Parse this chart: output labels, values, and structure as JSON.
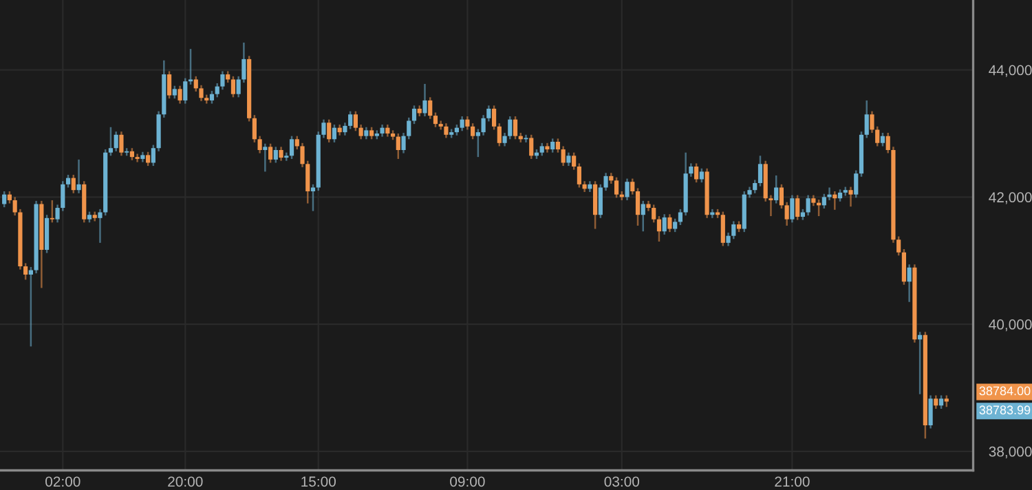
{
  "chart_data": {
    "type": "candlestick",
    "categories": [
      null,
      null,
      null,
      null,
      null,
      null,
      null,
      null,
      null,
      null,
      null,
      "02:00",
      null,
      null,
      null,
      null,
      null,
      null,
      null,
      null,
      null,
      null,
      null,
      null,
      null,
      null,
      null,
      null,
      null,
      null,
      null,
      null,
      null,
      null,
      "20:00",
      null,
      null,
      null,
      null,
      null,
      null,
      null,
      null,
      null,
      null,
      null,
      null,
      null,
      null,
      null,
      null,
      null,
      null,
      null,
      null,
      null,
      null,
      null,
      null,
      "15:00",
      null,
      null,
      null,
      null,
      null,
      null,
      null,
      null,
      null,
      null,
      null,
      null,
      null,
      null,
      null,
      null,
      null,
      null,
      null,
      null,
      null,
      null,
      null,
      null,
      null,
      null,
      null,
      "09:00",
      null,
      null,
      null,
      null,
      null,
      null,
      null,
      null,
      null,
      null,
      null,
      null,
      null,
      null,
      null,
      null,
      null,
      null,
      null,
      null,
      null,
      null,
      null,
      null,
      null,
      null,
      null,
      null,
      "03:00",
      null,
      null,
      null,
      null,
      null,
      null,
      null,
      null,
      null,
      null,
      null,
      null,
      null,
      null,
      null,
      null,
      null,
      null,
      null,
      null,
      null,
      null,
      null,
      null,
      null,
      null,
      null,
      null,
      null,
      null,
      null,
      "21:00",
      null,
      null,
      null,
      null,
      null,
      null,
      null,
      null,
      null,
      null,
      null,
      null,
      null,
      null,
      null,
      null,
      null,
      null,
      null,
      null,
      null,
      null,
      null,
      null,
      null,
      null,
      null,
      null,
      null
    ],
    "ohlc": [
      [
        41890,
        42090,
        41840,
        42040
      ],
      [
        42040,
        42090,
        41900,
        41950
      ],
      [
        41950,
        42000,
        41710,
        41760
      ],
      [
        41760,
        41810,
        40860,
        40910
      ],
      [
        40910,
        40960,
        40700,
        40780
      ],
      [
        40780,
        40900,
        39650,
        40850
      ],
      [
        40850,
        41940,
        40800,
        41890
      ],
      [
        41890,
        41940,
        40570,
        41170
      ],
      [
        41170,
        41720,
        41120,
        41670
      ],
      [
        41670,
        41950,
        41600,
        41650
      ],
      [
        41650,
        41880,
        41600,
        41830
      ],
      [
        41830,
        42250,
        41780,
        42200
      ],
      [
        42200,
        42350,
        42150,
        42300
      ],
      [
        42300,
        42350,
        42060,
        42110
      ],
      [
        42110,
        42590,
        42060,
        42200
      ],
      [
        42200,
        42250,
        41600,
        41650
      ],
      [
        41650,
        41770,
        41600,
        41720
      ],
      [
        41720,
        41770,
        41620,
        41670
      ],
      [
        41670,
        41810,
        41280,
        41760
      ],
      [
        41760,
        42750,
        41710,
        42700
      ],
      [
        42700,
        43100,
        42650,
        42770
      ],
      [
        42770,
        43030,
        42720,
        42980
      ],
      [
        42980,
        43030,
        42650,
        42700
      ],
      [
        42700,
        42770,
        42650,
        42720
      ],
      [
        42720,
        42770,
        42580,
        42630
      ],
      [
        42630,
        42680,
        42550,
        42600
      ],
      [
        42600,
        42710,
        42550,
        42660
      ],
      [
        42660,
        42710,
        42490,
        42540
      ],
      [
        42540,
        42820,
        42490,
        42770
      ],
      [
        42770,
        43350,
        42720,
        43300
      ],
      [
        43300,
        44150,
        43250,
        43930
      ],
      [
        43930,
        43980,
        43550,
        43600
      ],
      [
        43600,
        43750,
        43550,
        43700
      ],
      [
        43700,
        43750,
        43470,
        43520
      ],
      [
        43520,
        43870,
        43470,
        43820
      ],
      [
        43820,
        44330,
        43770,
        43850
      ],
      [
        43850,
        43900,
        43660,
        43710
      ],
      [
        43710,
        43760,
        43510,
        43560
      ],
      [
        43560,
        43610,
        43470,
        43520
      ],
      [
        43520,
        43670,
        43470,
        43620
      ],
      [
        43620,
        43790,
        43570,
        43740
      ],
      [
        43740,
        43980,
        43690,
        43930
      ],
      [
        43930,
        43980,
        43800,
        43850
      ],
      [
        43850,
        43900,
        43570,
        43620
      ],
      [
        43620,
        43900,
        43570,
        43850
      ],
      [
        43850,
        44430,
        43800,
        44170
      ],
      [
        44170,
        44220,
        43190,
        43240
      ],
      [
        43240,
        43290,
        42860,
        42910
      ],
      [
        42910,
        42960,
        42690,
        42740
      ],
      [
        42740,
        42840,
        42400,
        42790
      ],
      [
        42790,
        42840,
        42540,
        42590
      ],
      [
        42590,
        42790,
        42540,
        42740
      ],
      [
        42740,
        42790,
        42570,
        42620
      ],
      [
        42620,
        42700,
        42570,
        42650
      ],
      [
        42650,
        42960,
        42600,
        42910
      ],
      [
        42910,
        42960,
        42750,
        42800
      ],
      [
        42800,
        42850,
        42470,
        42520
      ],
      [
        42520,
        42570,
        41900,
        42090
      ],
      [
        42090,
        42200,
        41780,
        42150
      ],
      [
        42150,
        43030,
        42100,
        42980
      ],
      [
        42980,
        43220,
        42930,
        43170
      ],
      [
        43170,
        43220,
        42860,
        42910
      ],
      [
        42910,
        43140,
        42860,
        43090
      ],
      [
        43090,
        43140,
        42970,
        43020
      ],
      [
        43020,
        43170,
        42970,
        43120
      ],
      [
        43120,
        43350,
        43070,
        43300
      ],
      [
        43300,
        43350,
        43040,
        43090
      ],
      [
        43090,
        43140,
        42910,
        42960
      ],
      [
        42960,
        43100,
        42910,
        43050
      ],
      [
        43050,
        43100,
        42910,
        42960
      ],
      [
        42960,
        43050,
        42910,
        43000
      ],
      [
        43000,
        43140,
        42950,
        43090
      ],
      [
        43090,
        43140,
        42950,
        43000
      ],
      [
        43000,
        43050,
        42900,
        42950
      ],
      [
        42950,
        43000,
        42600,
        42740
      ],
      [
        42740,
        43010,
        42690,
        42960
      ],
      [
        42960,
        43250,
        42910,
        43200
      ],
      [
        43200,
        43440,
        43150,
        43390
      ],
      [
        43390,
        43440,
        43270,
        43320
      ],
      [
        43320,
        43780,
        43270,
        43520
      ],
      [
        43520,
        43570,
        43230,
        43280
      ],
      [
        43280,
        43330,
        43100,
        43150
      ],
      [
        43150,
        43200,
        43060,
        43110
      ],
      [
        43110,
        43160,
        42930,
        42980
      ],
      [
        42980,
        43070,
        42930,
        43020
      ],
      [
        43020,
        43140,
        42970,
        43090
      ],
      [
        43090,
        43270,
        43040,
        43220
      ],
      [
        43220,
        43270,
        43060,
        43110
      ],
      [
        43110,
        43160,
        42910,
        42960
      ],
      [
        42960,
        43070,
        42630,
        43020
      ],
      [
        43020,
        43290,
        42970,
        43240
      ],
      [
        43240,
        43440,
        43190,
        43390
      ],
      [
        43390,
        43440,
        43060,
        43110
      ],
      [
        43110,
        43160,
        42800,
        42850
      ],
      [
        42850,
        43010,
        42800,
        42960
      ],
      [
        42960,
        43270,
        42910,
        43220
      ],
      [
        43220,
        43270,
        42910,
        42960
      ],
      [
        42960,
        43010,
        42860,
        42910
      ],
      [
        42910,
        42980,
        42860,
        42930
      ],
      [
        42930,
        42980,
        42600,
        42650
      ],
      [
        42650,
        42750,
        42600,
        42700
      ],
      [
        42700,
        42850,
        42650,
        42800
      ],
      [
        42800,
        42850,
        42700,
        42750
      ],
      [
        42750,
        42920,
        42700,
        42870
      ],
      [
        42870,
        42920,
        42700,
        42750
      ],
      [
        42750,
        42800,
        42490,
        42540
      ],
      [
        42540,
        42700,
        42490,
        42650
      ],
      [
        42650,
        42700,
        42430,
        42480
      ],
      [
        42480,
        42530,
        42150,
        42200
      ],
      [
        42200,
        42250,
        42080,
        42130
      ],
      [
        42130,
        42250,
        42080,
        42200
      ],
      [
        42200,
        42250,
        41500,
        41720
      ],
      [
        41720,
        42200,
        41670,
        42150
      ],
      [
        42150,
        42380,
        42100,
        42330
      ],
      [
        42330,
        42380,
        42210,
        42260
      ],
      [
        42260,
        42310,
        41990,
        42040
      ],
      [
        42040,
        42090,
        41950,
        42000
      ],
      [
        42000,
        42290,
        41950,
        42240
      ],
      [
        42240,
        42290,
        42040,
        42090
      ],
      [
        42090,
        42140,
        41550,
        41720
      ],
      [
        41720,
        41940,
        41460,
        41890
      ],
      [
        41890,
        41940,
        41780,
        41830
      ],
      [
        41830,
        41880,
        41600,
        41650
      ],
      [
        41650,
        41700,
        41300,
        41460
      ],
      [
        41460,
        41730,
        41410,
        41680
      ],
      [
        41680,
        41730,
        41450,
        41500
      ],
      [
        41500,
        41660,
        41450,
        41610
      ],
      [
        41610,
        41810,
        41560,
        41760
      ],
      [
        41760,
        42700,
        41710,
        42370
      ],
      [
        42370,
        42530,
        42320,
        42480
      ],
      [
        42480,
        42530,
        42230,
        42280
      ],
      [
        42280,
        42450,
        42230,
        42400
      ],
      [
        42400,
        42450,
        41670,
        41720
      ],
      [
        41720,
        41810,
        41670,
        41760
      ],
      [
        41760,
        41810,
        41670,
        41720
      ],
      [
        41720,
        41770,
        41230,
        41280
      ],
      [
        41280,
        41440,
        41230,
        41390
      ],
      [
        41390,
        41620,
        41340,
        41570
      ],
      [
        41570,
        41620,
        41450,
        41500
      ],
      [
        41500,
        42090,
        41450,
        42040
      ],
      [
        42040,
        42160,
        41990,
        42110
      ],
      [
        42110,
        42270,
        42060,
        42220
      ],
      [
        42220,
        42650,
        42170,
        42520
      ],
      [
        42520,
        42570,
        41930,
        41980
      ],
      [
        41980,
        42030,
        41700,
        41950
      ],
      [
        41950,
        42340,
        41900,
        42150
      ],
      [
        42150,
        42200,
        41820,
        41870
      ],
      [
        41870,
        41920,
        41550,
        41650
      ],
      [
        41650,
        42030,
        41600,
        41980
      ],
      [
        41980,
        42030,
        41640,
        41690
      ],
      [
        41690,
        41810,
        41640,
        41760
      ],
      [
        41760,
        42030,
        41710,
        41980
      ],
      [
        41980,
        42030,
        41860,
        41910
      ],
      [
        41910,
        41960,
        41700,
        41870
      ],
      [
        41870,
        42050,
        41820,
        42000
      ],
      [
        42000,
        42150,
        41950,
        42040
      ],
      [
        42040,
        42090,
        41800,
        41980
      ],
      [
        41980,
        42120,
        41930,
        42070
      ],
      [
        42070,
        42160,
        42020,
        42110
      ],
      [
        42110,
        42160,
        41850,
        42040
      ],
      [
        42040,
        42420,
        41990,
        42370
      ],
      [
        42370,
        43030,
        42320,
        42980
      ],
      [
        42980,
        43520,
        42930,
        43300
      ],
      [
        43300,
        43350,
        43010,
        43060
      ],
      [
        43060,
        43110,
        42800,
        42850
      ],
      [
        42850,
        43010,
        42800,
        42960
      ],
      [
        42960,
        43010,
        42690,
        42740
      ],
      [
        42740,
        42790,
        41280,
        41330
      ],
      [
        41330,
        41380,
        41080,
        41130
      ],
      [
        41130,
        41180,
        40620,
        40670
      ],
      [
        40670,
        40940,
        40350,
        40890
      ],
      [
        40890,
        40940,
        39710,
        39760
      ],
      [
        39760,
        39880,
        38900,
        39830
      ],
      [
        39830,
        39880,
        38200,
        38410
      ],
      [
        38410,
        38880,
        38360,
        38830
      ],
      [
        38830,
        38880,
        38670,
        38720
      ],
      [
        38720,
        38880,
        38670,
        38830
      ],
      [
        38830,
        38880,
        38700,
        38784
      ]
    ],
    "colors": [
      "#6db3d3",
      "#f0944b",
      "#f0944b",
      "#f0944b",
      "#f0944b",
      "#6db3d3",
      "#6db3d3",
      "#f0944b",
      "#6db3d3",
      "#f0944b",
      "#6db3d3",
      "#6db3d3",
      "#6db3d3",
      "#f0944b",
      "#6db3d3",
      "#f0944b",
      "#6db3d3",
      "#f0944b",
      "#6db3d3",
      "#6db3d3",
      "#6db3d3",
      "#6db3d3",
      "#f0944b",
      "#6db3d3",
      "#f0944b",
      "#f0944b",
      "#6db3d3",
      "#f0944b",
      "#6db3d3",
      "#6db3d3",
      "#6db3d3",
      "#f0944b",
      "#6db3d3",
      "#f0944b",
      "#6db3d3",
      "#6db3d3",
      "#f0944b",
      "#f0944b",
      "#f0944b",
      "#6db3d3",
      "#6db3d3",
      "#6db3d3",
      "#f0944b",
      "#f0944b",
      "#6db3d3",
      "#6db3d3",
      "#f0944b",
      "#f0944b",
      "#f0944b",
      "#6db3d3",
      "#f0944b",
      "#6db3d3",
      "#f0944b",
      "#6db3d3",
      "#6db3d3",
      "#f0944b",
      "#f0944b",
      "#f0944b",
      "#6db3d3",
      "#6db3d3",
      "#6db3d3",
      "#f0944b",
      "#6db3d3",
      "#f0944b",
      "#6db3d3",
      "#6db3d3",
      "#f0944b",
      "#f0944b",
      "#6db3d3",
      "#f0944b",
      "#6db3d3",
      "#6db3d3",
      "#f0944b",
      "#f0944b",
      "#f0944b",
      "#6db3d3",
      "#6db3d3",
      "#6db3d3",
      "#f0944b",
      "#6db3d3",
      "#f0944b",
      "#f0944b",
      "#f0944b",
      "#f0944b",
      "#6db3d3",
      "#6db3d3",
      "#6db3d3",
      "#f0944b",
      "#f0944b",
      "#6db3d3",
      "#6db3d3",
      "#6db3d3",
      "#f0944b",
      "#f0944b",
      "#6db3d3",
      "#6db3d3",
      "#f0944b",
      "#f0944b",
      "#6db3d3",
      "#f0944b",
      "#6db3d3",
      "#6db3d3",
      "#f0944b",
      "#6db3d3",
      "#f0944b",
      "#f0944b",
      "#6db3d3",
      "#f0944b",
      "#f0944b",
      "#f0944b",
      "#6db3d3",
      "#f0944b",
      "#6db3d3",
      "#6db3d3",
      "#f0944b",
      "#f0944b",
      "#f0944b",
      "#6db3d3",
      "#f0944b",
      "#f0944b",
      "#6db3d3",
      "#f0944b",
      "#f0944b",
      "#f0944b",
      "#6db3d3",
      "#f0944b",
      "#6db3d3",
      "#6db3d3",
      "#6db3d3",
      "#6db3d3",
      "#f0944b",
      "#6db3d3",
      "#f0944b",
      "#6db3d3",
      "#f0944b",
      "#f0944b",
      "#6db3d3",
      "#6db3d3",
      "#f0944b",
      "#6db3d3",
      "#6db3d3",
      "#6db3d3",
      "#6db3d3",
      "#f0944b",
      "#f0944b",
      "#6db3d3",
      "#f0944b",
      "#f0944b",
      "#6db3d3",
      "#f0944b",
      "#6db3d3",
      "#6db3d3",
      "#f0944b",
      "#f0944b",
      "#6db3d3",
      "#6db3d3",
      "#f0944b",
      "#6db3d3",
      "#6db3d3",
      "#f0944b",
      "#6db3d3",
      "#6db3d3",
      "#6db3d3",
      "#f0944b",
      "#f0944b",
      "#6db3d3",
      "#f0944b",
      "#f0944b",
      "#f0944b",
      "#f0944b",
      "#6db3d3",
      "#f0944b",
      "#6db3d3",
      "#f0944b",
      "#6db3d3",
      "#f0944b",
      "#6db3d3",
      "#f0944b"
    ],
    "ylim": [
      37700,
      45100
    ],
    "yticks": [
      {
        "value": 38000,
        "label": "38,000"
      },
      {
        "value": 40000,
        "label": "40,000"
      },
      {
        "value": 42000,
        "label": "42,000"
      },
      {
        "value": 44000,
        "label": "44,000"
      }
    ],
    "grid": true,
    "annotations": [
      "38784.00",
      "38783.99"
    ]
  }
}
